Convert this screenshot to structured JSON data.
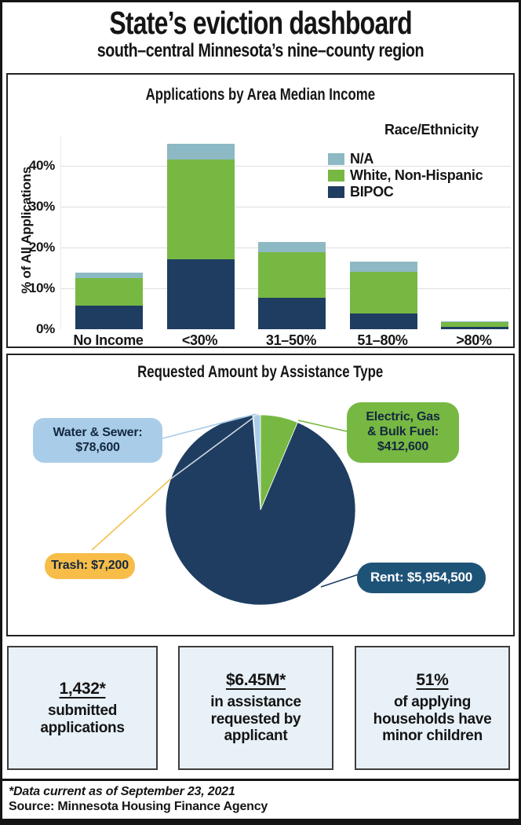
{
  "page": {
    "title": "State’s eviction dashboard",
    "subtitle": "south–central Minnesota’s nine–county region"
  },
  "chart_data": [
    {
      "type": "bar",
      "stacked": true,
      "title": "Applications by Area Median Income",
      "ylabel": "% of All Applications",
      "xlabel": "",
      "categories": [
        "No Income",
        "<30%",
        "31–50%",
        "51–80%",
        ">80%"
      ],
      "series": [
        {
          "name": "BIPOC",
          "color": "#1e3d61",
          "values": [
            5.7,
            17.2,
            7.6,
            3.8,
            0.5
          ]
        },
        {
          "name": "White, Non-Hispanic",
          "color": "#77b843",
          "values": [
            6.7,
            24.4,
            11.2,
            10.3,
            1.3
          ]
        },
        {
          "name": "N/A",
          "color": "#8cb9c3",
          "values": [
            1.5,
            3.7,
            2.6,
            2.4,
            0.2
          ]
        }
      ],
      "legend_title": "Race/Ethnicity",
      "legend_order_top_to_bottom": [
        "N/A",
        "White, Non-Hispanic",
        "BIPOC"
      ],
      "yticks": [
        0,
        10,
        20,
        30,
        40
      ],
      "ytick_suffix": "%",
      "ylim": [
        0,
        47.1
      ],
      "grid": "horizontal",
      "legend_position": "upper right"
    },
    {
      "type": "pie",
      "title": "Requested Amount by Assistance Type",
      "slices": [
        {
          "label": "Trash",
          "value": 7200,
          "color": "#f7bd48",
          "callout_bg": "#f7bd48",
          "callout_text": "#14283f",
          "callout_lines": [
            "Trash: $7,200"
          ]
        },
        {
          "label": "Water & Sewer",
          "value": 78600,
          "color": "#a9cde9",
          "callout_bg": "#a9cde9",
          "callout_text": "#14283f",
          "callout_lines": [
            "Water & Sewer:",
            "$78,600"
          ]
        },
        {
          "label": "Electric, Gas & Bulk Fuel",
          "value": 412600,
          "color": "#77b843",
          "callout_bg": "#77b843",
          "callout_text": "#14283f",
          "callout_lines": [
            "Electric, Gas",
            "& Bulk Fuel:",
            "$412,600"
          ]
        },
        {
          "label": "Rent",
          "value": 5954500,
          "color": "#1e3d61",
          "callout_bg": "#1e5378",
          "callout_text": "#ffffff",
          "callout_lines": [
            "Rent: $5,954,500"
          ]
        }
      ]
    }
  ],
  "stats": [
    {
      "value": "1,432*",
      "lines": [
        "submitted",
        "applications"
      ]
    },
    {
      "value": "$6.45M*",
      "lines": [
        "in assistance",
        "requested by",
        "applicant"
      ]
    },
    {
      "value": "51%",
      "lines": [
        "of applying",
        "households have",
        "minor children"
      ]
    }
  ],
  "footer": {
    "note": "*Data current as of September 23, 2021",
    "source": "Source: Minnesota Housing Finance Agency"
  }
}
